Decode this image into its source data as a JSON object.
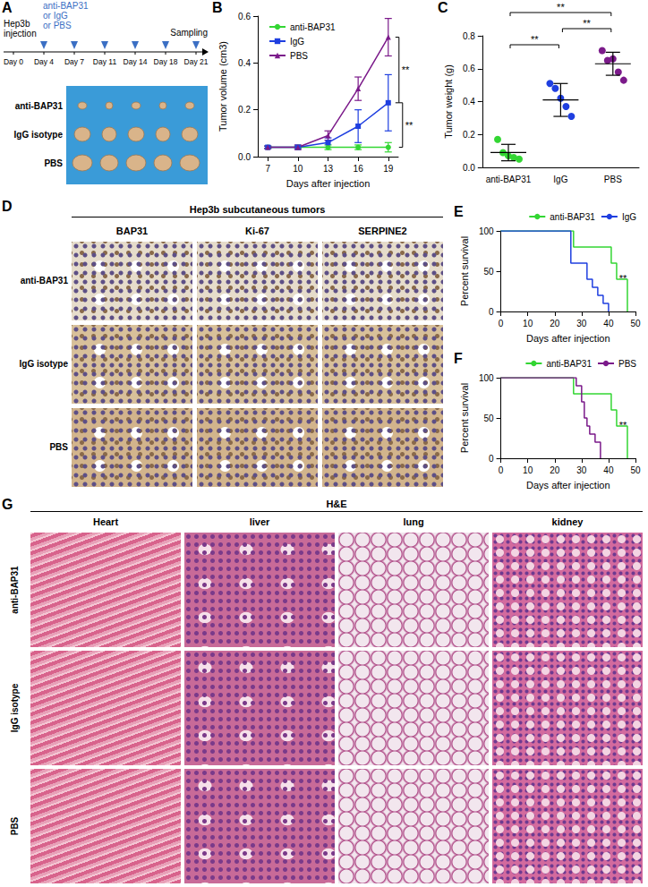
{
  "panel_a": {
    "label": "A",
    "start": [
      "Hep3b",
      "injection"
    ],
    "treatment": [
      "anti-BAP31",
      "or IgG",
      "or PBS"
    ],
    "end": "Sampling",
    "days": [
      "Day 0",
      "Day 4",
      "Day 7",
      "Day 11",
      "Day 14",
      "Day 18",
      "Day 21"
    ],
    "photo_rows": [
      "anti-BAP31",
      "IgG isotype",
      "PBS"
    ]
  },
  "chart_data": [
    {
      "type": "line",
      "annotations": [
        "B",
        "**",
        "**"
      ],
      "x_label": "Days after injection",
      "y_label": "Tumor volume (cm3)",
      "x": [
        7,
        10,
        13,
        16,
        19
      ],
      "xlim": [
        6,
        20
      ],
      "xticks": [
        7,
        10,
        13,
        16,
        19
      ],
      "ylim": [
        0,
        0.6
      ],
      "yticks": [
        {
          "value": 0,
          "label": "0.0"
        },
        0.2,
        0.4,
        0.6
      ],
      "grid": false,
      "legend": "upper left",
      "series": [
        {
          "name": "anti-BAP31",
          "color": "#33d633",
          "marker": "circle",
          "values": [
            0.04,
            0.04,
            0.04,
            0.04,
            0.04
          ],
          "error": [
            0.005,
            0.005,
            0.01,
            0.01,
            0.02
          ]
        },
        {
          "name": "IgG",
          "color": "#1f3fe0",
          "marker": "square",
          "values": [
            0.04,
            0.04,
            0.06,
            0.13,
            0.23
          ],
          "error": [
            0.005,
            0.005,
            0.02,
            0.07,
            0.12
          ]
        },
        {
          "name": "PBS",
          "color": "#7b1a8a",
          "marker": "triangle",
          "values": [
            0.04,
            0.04,
            0.09,
            0.29,
            0.51
          ],
          "error": [
            0.005,
            0.01,
            0.02,
            0.05,
            0.08
          ]
        }
      ]
    },
    {
      "type": "scatter",
      "annotations": [
        "C",
        "**",
        "**",
        "**"
      ],
      "y_label": "Tumor weight (g)",
      "categories": [
        "anti-BAP31",
        "IgG",
        "PBS"
      ],
      "colors": [
        "#33d633",
        "#1f3fe0",
        "#7b1a8a"
      ],
      "values": [
        [
          0.17,
          0.09,
          0.07,
          0.06,
          0.05
        ],
        [
          0.51,
          0.48,
          0.42,
          0.37,
          0.31
        ],
        [
          0.71,
          0.65,
          0.66,
          0.58,
          0.53
        ]
      ],
      "mean": [
        0.09,
        0.41,
        0.63
      ],
      "sd": [
        0.05,
        0.1,
        0.07
      ],
      "ylim": [
        0,
        0.8
      ],
      "yticks": [
        {
          "value": 0,
          "label": "0.0"
        },
        0.2,
        0.4,
        0.6,
        0.8
      ],
      "grid": false
    },
    {
      "type": "line",
      "annotations": [
        "E",
        "**"
      ],
      "x_label": "Days after injection",
      "y_label": "Percent survival",
      "xlim": [
        0,
        50
      ],
      "xticks": [
        0,
        10,
        20,
        30,
        40,
        50
      ],
      "ylim": [
        0,
        100
      ],
      "yticks": [
        0,
        50,
        100
      ],
      "grid": false,
      "legend": "upper right",
      "line_style": "step",
      "series": [
        {
          "name": "anti-BAP31",
          "color": "#33d633",
          "x": [
            0,
            27,
            41,
            43,
            47
          ],
          "values": [
            100,
            80,
            60,
            40,
            0
          ]
        },
        {
          "name": "IgG",
          "color": "#1f3fe0",
          "x": [
            0,
            26,
            32,
            34,
            36,
            38,
            40
          ],
          "values": [
            100,
            60,
            40,
            30,
            20,
            10,
            0
          ]
        }
      ]
    },
    {
      "type": "line",
      "annotations": [
        "F",
        "**"
      ],
      "x_label": "Days after injection",
      "y_label": "Percent survival",
      "xlim": [
        0,
        50
      ],
      "xticks": [
        0,
        10,
        20,
        30,
        40,
        50
      ],
      "ylim": [
        0,
        100
      ],
      "yticks": [
        0,
        50,
        100
      ],
      "grid": false,
      "legend": "upper right",
      "line_style": "step",
      "series": [
        {
          "name": "anti-BAP31",
          "color": "#33d633",
          "x": [
            0,
            27,
            41,
            43,
            47
          ],
          "values": [
            100,
            80,
            60,
            40,
            0
          ]
        },
        {
          "name": "PBS",
          "color": "#7b1a8a",
          "x": [
            0,
            28,
            30,
            31,
            32,
            33,
            35,
            37
          ],
          "values": [
            100,
            90,
            70,
            50,
            40,
            30,
            20,
            0
          ]
        }
      ]
    }
  ],
  "panel_d": {
    "label": "D",
    "title": "Hep3b subcutaneous tumors",
    "columns": [
      "BAP31",
      "Ki-67",
      "SERPINE2"
    ],
    "rows": [
      "anti-BAP31",
      "IgG isotype",
      "PBS"
    ]
  },
  "panel_g": {
    "label": "G",
    "title": "H&E",
    "columns": [
      "Heart",
      "liver",
      "lung",
      "kidney"
    ],
    "rows": [
      "anti-BAP31",
      "IgG isotype",
      "PBS"
    ]
  }
}
